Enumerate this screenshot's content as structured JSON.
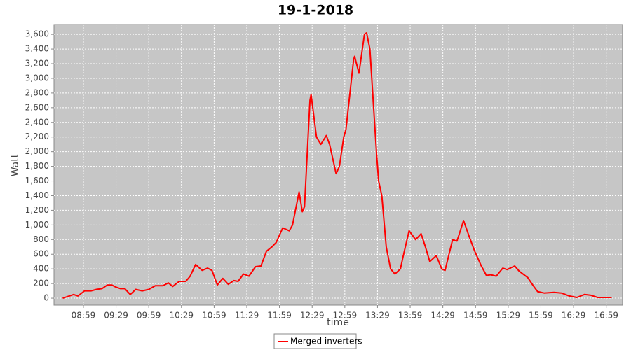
{
  "chart_data": {
    "type": "line",
    "title": "19-1-2018",
    "x_label": "time",
    "y_label": "Watt",
    "x": [
      "08:40",
      "08:46",
      "08:50",
      "08:54",
      "09:00",
      "09:06",
      "09:11",
      "09:16",
      "09:21",
      "09:25",
      "09:29",
      "09:33",
      "09:37",
      "09:42",
      "09:47",
      "09:53",
      "09:59",
      "10:05",
      "10:12",
      "10:17",
      "10:21",
      "10:27",
      "10:33",
      "10:37",
      "10:42",
      "10:48",
      "10:53",
      "10:57",
      "11:02",
      "11:07",
      "11:12",
      "11:17",
      "11:21",
      "11:26",
      "11:31",
      "11:37",
      "11:42",
      "11:47",
      "11:52",
      "11:56",
      "12:02",
      "12:08",
      "12:11",
      "12:17",
      "12:20",
      "12:22",
      "12:27",
      "12:28",
      "12:33",
      "12:37",
      "12:42",
      "12:45",
      "12:51",
      "12:54",
      "12:58",
      "13:00",
      "13:07",
      "13:08",
      "13:12",
      "13:17",
      "13:19",
      "13:22",
      "13:28",
      "13:30",
      "13:33",
      "13:37",
      "13:41",
      "13:45",
      "13:50",
      "13:53",
      "13:58",
      "14:04",
      "14:09",
      "14:13",
      "14:17",
      "14:23",
      "14:28",
      "14:31",
      "14:38",
      "14:42",
      "14:48",
      "14:53",
      "14:58",
      "15:04",
      "15:09",
      "15:13",
      "15:18",
      "15:24",
      "15:28",
      "15:35",
      "15:39",
      "15:47",
      "15:52",
      "15:56",
      "16:02",
      "16:11",
      "16:18",
      "16:25",
      "16:32",
      "16:39",
      "16:45",
      "16:51",
      "17:04"
    ],
    "series": [
      {
        "name": "Merged inverters",
        "color": "#ff0000",
        "values": [
          0,
          30,
          50,
          30,
          100,
          100,
          120,
          130,
          180,
          180,
          150,
          130,
          130,
          50,
          120,
          100,
          120,
          170,
          170,
          210,
          160,
          230,
          230,
          300,
          460,
          380,
          410,
          380,
          180,
          270,
          190,
          240,
          230,
          330,
          300,
          430,
          440,
          640,
          700,
          760,
          960,
          920,
          1000,
          1450,
          1180,
          1250,
          2700,
          2780,
          2200,
          2100,
          2220,
          2100,
          1700,
          1800,
          2200,
          2300,
          3250,
          3300,
          3070,
          3600,
          3620,
          3400,
          2000,
          1600,
          1400,
          700,
          400,
          330,
          400,
          600,
          920,
          800,
          880,
          700,
          500,
          580,
          400,
          380,
          800,
          780,
          1060,
          850,
          650,
          450,
          310,
          320,
          300,
          410,
          390,
          440,
          370,
          280,
          170,
          90,
          70,
          80,
          70,
          30,
          10,
          50,
          40,
          10,
          10
        ]
      }
    ],
    "xlim": [
      "08:32",
      "17:14"
    ],
    "xticks": [
      "08:59",
      "09:29",
      "09:59",
      "10:29",
      "10:59",
      "11:29",
      "11:59",
      "12:29",
      "12:59",
      "13:29",
      "13:59",
      "14:29",
      "14:59",
      "15:29",
      "15:59",
      "16:29",
      "16:59"
    ],
    "ylim": [
      -95,
      3735
    ],
    "yticks": [
      0,
      200,
      400,
      600,
      800,
      {
        "value": 1000,
        "label": "1,000"
      },
      {
        "value": 1200,
        "label": "1,200"
      },
      {
        "value": 1400,
        "label": "1,400"
      },
      {
        "value": 1600,
        "label": "1,600"
      },
      {
        "value": 1800,
        "label": "1,800"
      },
      {
        "value": 2000,
        "label": "2,000"
      },
      {
        "value": 2200,
        "label": "2,200"
      },
      {
        "value": 2400,
        "label": "2,400"
      },
      {
        "value": 2600,
        "label": "2,600"
      },
      {
        "value": 2800,
        "label": "2,800"
      },
      {
        "value": 3000,
        "label": "3,000"
      },
      {
        "value": 3200,
        "label": "3,200"
      },
      {
        "value": 3400,
        "label": "3,400"
      },
      {
        "value": 3600,
        "label": "3,600"
      }
    ],
    "grid": true
  }
}
